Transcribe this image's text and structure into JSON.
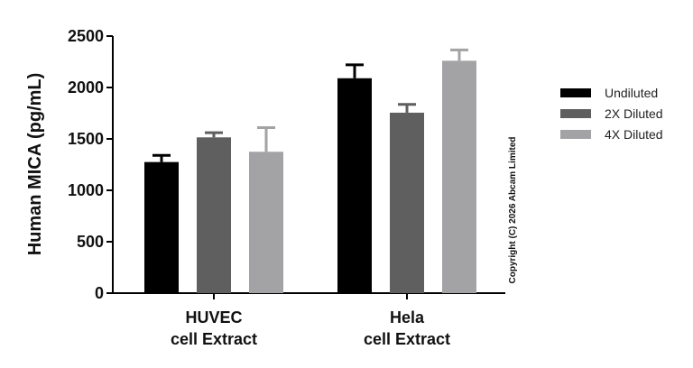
{
  "chart_data": {
    "type": "bar",
    "ylabel": "Human MICA (pg/mL)",
    "xlabel": "",
    "ylim": [
      0,
      2500
    ],
    "yticks": [
      0,
      500,
      1000,
      1500,
      2000,
      2500
    ],
    "groups": [
      {
        "line1": "HUVEC",
        "line2": "cell Extract"
      },
      {
        "line1": "Hela",
        "line2": "cell Extract"
      }
    ],
    "series": [
      {
        "name": "Undiluted",
        "color": "#000000",
        "values": [
          1275,
          2090
        ],
        "errors": [
          65,
          130
        ]
      },
      {
        "name": "2X Diluted",
        "color": "#5f5f5f",
        "values": [
          1515,
          1755
        ],
        "errors": [
          45,
          80
        ]
      },
      {
        "name": "4X Diluted",
        "color": "#a3a3a5",
        "values": [
          1375,
          2260
        ],
        "errors": [
          235,
          105
        ]
      }
    ],
    "legend_position": "right",
    "error_bars": "upper"
  },
  "copyright": "Copyright (C) 2026 Abcam Limited"
}
